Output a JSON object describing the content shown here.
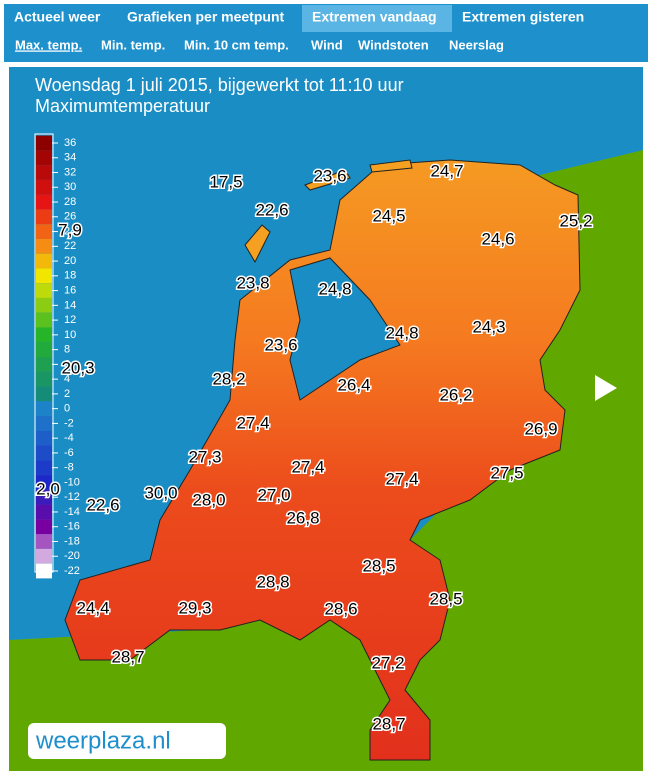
{
  "tabs": [
    "Actueel weer",
    "Grafieken per meetpunt",
    "Extremen vandaag",
    "Extremen gisteren"
  ],
  "subtabs": [
    "Max. temp.",
    "Min. temp.",
    "Min. 10 cm temp.",
    "Wind",
    "Windstoten",
    "Neerslag"
  ],
  "map": {
    "title": "Woensdag 1 juli 2015, bijgewerkt tot 11:10 uur",
    "subtitle": "Maximumtemperatuur",
    "scale": [
      36,
      34,
      32,
      30,
      28,
      26,
      24,
      22,
      20,
      18,
      16,
      14,
      12,
      10,
      8,
      6,
      4,
      2,
      0,
      -2,
      -4,
      -6,
      -8,
      -10,
      -12,
      -14,
      -16,
      -18,
      -20,
      -22
    ],
    "stations": [
      "17,5",
      "23,6",
      "24,7",
      "22,6",
      "24,5",
      "24,6",
      "25,2",
      "7,9",
      "23,8",
      "24,8",
      "24,8",
      "24,3",
      "23,6",
      "20,3",
      "28,2",
      "26,4",
      "26,2",
      "27,4",
      "26,9",
      "27,3",
      "27,4",
      "27,4",
      "27,5",
      "2,0",
      "22,6",
      "30,0",
      "28,0",
      "27,0",
      "26,8",
      "28,5",
      "28,8",
      "24,4",
      "29,3",
      "28,6",
      "28,5",
      "28,7",
      "27,2",
      "28,7"
    ],
    "logo": "weerplaza.nl"
  }
}
